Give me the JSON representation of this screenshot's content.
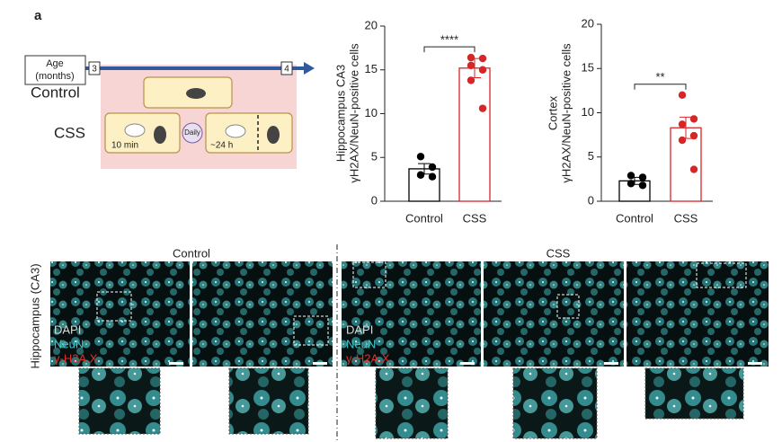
{
  "panel_label": "a",
  "schematic": {
    "age_label": [
      "Age",
      "(months)"
    ],
    "start_age": "3",
    "end_age": "4",
    "control_label": "Control",
    "css_label": "CSS",
    "exposure": "10 min",
    "frequency": "Daily",
    "recovery": "~24 h"
  },
  "chart_data": [
    {
      "type": "bar",
      "ylabel": [
        "Hippocampus CA3",
        "γH2AX/NeuN-positive cells"
      ],
      "categories": [
        "Control",
        "CSS"
      ],
      "values": [
        3.7,
        15.2
      ],
      "errors": [
        0.6,
        1.1
      ],
      "colors": [
        "#000000",
        "#d62728"
      ],
      "points": [
        [
          5.1,
          3.9,
          3.0,
          2.8
        ],
        [
          16.4,
          16.3,
          15.5,
          15.0,
          13.8,
          10.6
        ]
      ],
      "ylim": [
        0,
        20
      ],
      "yticks": [
        0,
        5,
        10,
        15,
        20
      ],
      "significance": "****"
    },
    {
      "type": "bar",
      "ylabel": [
        "Cortex",
        "γH2AX/NeuN-positive cells"
      ],
      "categories": [
        "Control",
        "CSS"
      ],
      "values": [
        2.3,
        8.3
      ],
      "errors": [
        0.4,
        1.2
      ],
      "colors": [
        "#000000",
        "#d62728"
      ],
      "points": [
        [
          2.9,
          2.7,
          2.0,
          1.8
        ],
        [
          12.0,
          9.3,
          8.7,
          7.4,
          6.9,
          3.6
        ]
      ],
      "ylim": [
        0,
        20
      ],
      "yticks": [
        0,
        5,
        10,
        15,
        20
      ],
      "significance": "**"
    }
  ],
  "images": {
    "control_title": "Control",
    "css_title": "CSS",
    "region_label": "Hippocampus (CA3)",
    "stains": [
      "DAPI",
      "NeuN",
      "γ-H2A.X"
    ]
  }
}
